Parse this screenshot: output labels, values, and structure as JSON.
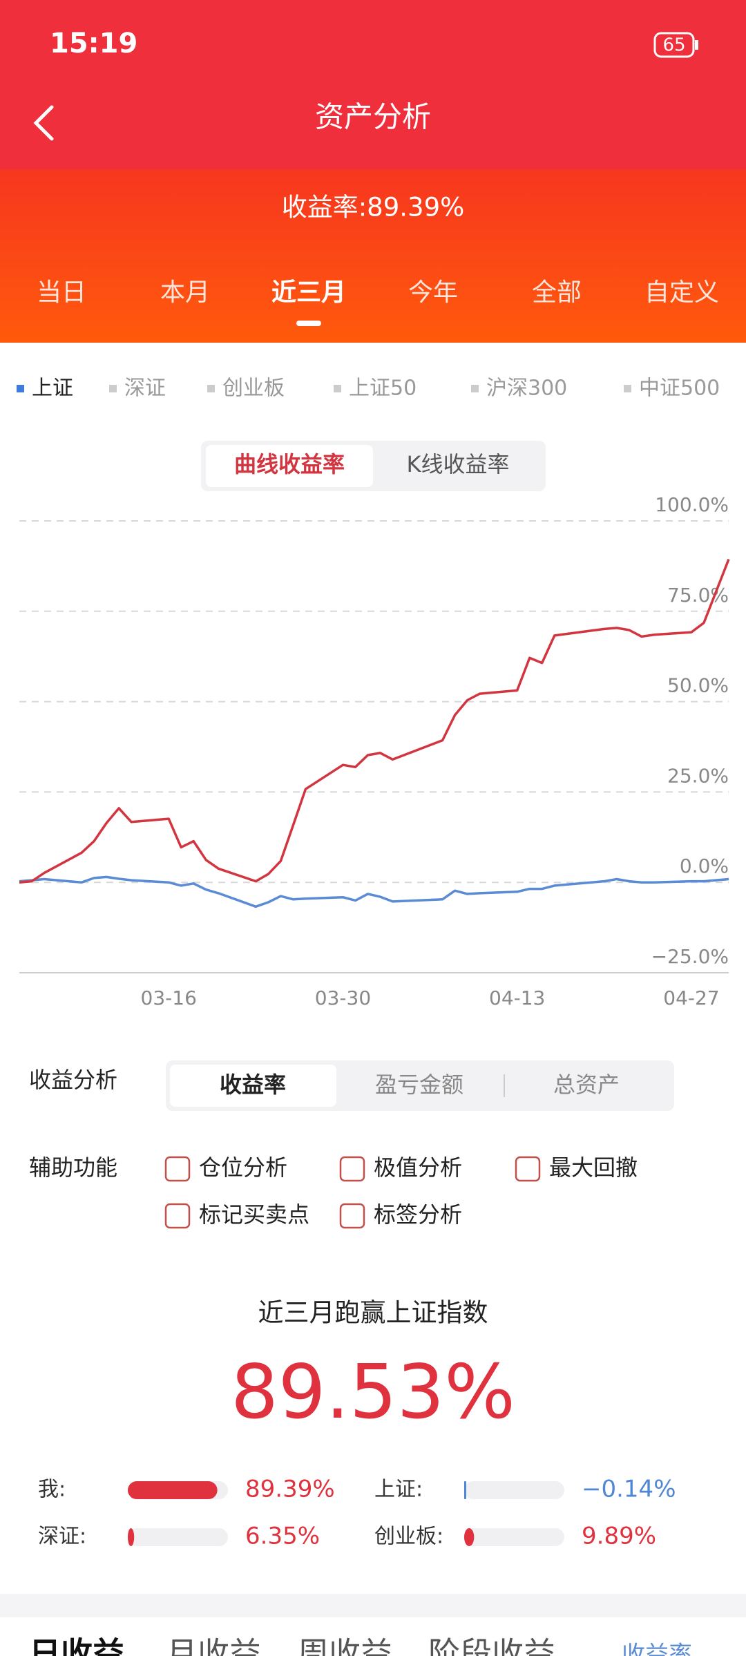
{
  "status_bar": {
    "time": "15:19",
    "battery": "65"
  },
  "header": {
    "title": "资产分析"
  },
  "summary": {
    "label": "收益率:89.39%"
  },
  "period_tabs": {
    "items": [
      "当日",
      "本月",
      "近三月",
      "今年",
      "全部",
      "自定义"
    ],
    "active": 2
  },
  "index_legend": {
    "items": [
      "上证",
      "深证",
      "创业板",
      "上证50",
      "沪深300",
      "中证500"
    ],
    "active": 0,
    "active_color": "#3d7be0"
  },
  "chart_toggle": {
    "items": [
      "曲线收益率",
      "K线收益率"
    ],
    "active": 0
  },
  "chart": {
    "type": "line",
    "x": [
      "03-04",
      "03-05",
      "03-06",
      "03-09",
      "03-10",
      "03-11",
      "03-12",
      "03-13",
      "03-16",
      "03-17",
      "03-18",
      "03-19",
      "03-20",
      "03-23",
      "03-24",
      "03-25",
      "03-26",
      "03-27",
      "03-30",
      "03-31",
      "04-01",
      "04-02",
      "04-03",
      "04-07",
      "04-08",
      "04-09",
      "04-10",
      "04-13",
      "04-14",
      "04-15",
      "04-16",
      "04-20",
      "04-21",
      "04-22",
      "04-23",
      "04-24",
      "04-27",
      "04-28",
      "04-30"
    ],
    "series": [
      {
        "color": "#d2353f",
        "values": [
          0,
          0.3,
          2.6,
          8.2,
          11.4,
          16.4,
          20.5,
          16.7,
          17.6,
          9.7,
          11.4,
          6.2,
          3.8,
          0.3,
          2.3,
          5.9,
          15.8,
          25.8,
          32.5,
          31.9,
          35.2,
          35.8,
          34,
          39.3,
          46.3,
          50.4,
          52.2,
          53.1,
          62.1,
          60.7,
          68.3,
          70.1,
          70.4,
          69.8,
          68,
          68.5,
          69.2,
          71.8,
          89.4
        ]
      },
      {
        "color": "#5a8bd4",
        "values": [
          0.3,
          0.6,
          0.9,
          0,
          1.2,
          1.5,
          1,
          0.6,
          0,
          -0.9,
          -0.3,
          -2,
          -3,
          -6.7,
          -5.5,
          -3.8,
          -4.7,
          -4.5,
          -4.1,
          -5,
          -3.2,
          -4,
          -5.3,
          -4.7,
          -2.3,
          -3.2,
          -3,
          -2.6,
          -1.8,
          -1.8,
          -0.9,
          0.3,
          0.9,
          0.3,
          0,
          0,
          0.3,
          0.3,
          0.9
        ]
      }
    ],
    "xlim": [
      "03-04",
      "04-30"
    ],
    "xticks": [
      "03-16",
      "03-30",
      "04-13",
      "04-27"
    ],
    "ylim": [
      -25,
      100
    ],
    "yticks": [
      {
        "value": -25,
        "label": "−25.0%"
      },
      {
        "value": 0,
        "label": "0.0%"
      },
      {
        "value": 25,
        "label": "25.0%"
      },
      {
        "value": 50,
        "label": "50.0%"
      },
      {
        "value": 75,
        "label": "75.0%"
      },
      {
        "value": 100,
        "label": "100.0%"
      }
    ],
    "grid": true
  },
  "analysis": {
    "label": "收益分析",
    "options": [
      "收益率",
      "盈亏金额",
      "总资产"
    ],
    "active": 0
  },
  "tools": {
    "label": "辅助功能",
    "options": [
      "仓位分析",
      "极值分析",
      "最大回撤",
      "标记买卖点",
      "标签分析"
    ]
  },
  "outperform": {
    "title": "近三月跑赢上证指数",
    "value": "89.53%"
  },
  "comparison": [
    {
      "name": "我:",
      "value": 89.39,
      "value_label": "89.39%",
      "color": "#e0323e"
    },
    {
      "name": "上证:",
      "value": -0.14,
      "value_label": "−0.14%",
      "color": "#4f86d6"
    },
    {
      "name": "深证:",
      "value": 6.35,
      "value_label": "6.35%",
      "color": "#e0323e"
    },
    {
      "name": "创业板:",
      "value": 9.89,
      "value_label": "9.89%",
      "color": "#e0323e"
    }
  ],
  "bottom_tabs": {
    "items": [
      "日收益",
      "月收益",
      "周收益",
      "阶段收益"
    ],
    "link": "收益率"
  }
}
